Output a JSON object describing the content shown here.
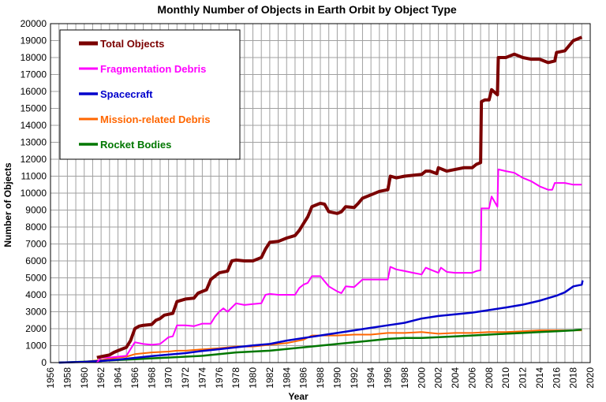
{
  "chart_data": {
    "type": "line",
    "title": "Monthly Number of Objects in Earth Orbit by Object Type",
    "xlabel": "Year",
    "ylabel": "Number of Objects",
    "xlim": [
      1956,
      2020
    ],
    "ylim": [
      0,
      20000
    ],
    "x_ticks": [
      "1956",
      "1958",
      "1960",
      "1962",
      "1964",
      "1966",
      "1968",
      "1970",
      "1972",
      "1974",
      "1976",
      "1978",
      "1980",
      "1982",
      "1984",
      "1986",
      "1988",
      "1990",
      "1992",
      "1994",
      "1996",
      "1998",
      "2000",
      "2002",
      "2004",
      "2006",
      "2008",
      "2010",
      "2012",
      "2014",
      "2016",
      "2018",
      "2020"
    ],
    "y_ticks": [
      "0",
      "1000",
      "2000",
      "3000",
      "4000",
      "5000",
      "6000",
      "7000",
      "8000",
      "9000",
      "10000",
      "11000",
      "12000",
      "13000",
      "14000",
      "15000",
      "16000",
      "17000",
      "18000",
      "19000",
      "20000"
    ],
    "grid": true,
    "legend_position": "top-left",
    "series": [
      {
        "name": "Total Objects",
        "color": "#7b0000",
        "points": [
          [
            1961.5,
            300
          ],
          [
            1962,
            350
          ],
          [
            1963,
            450
          ],
          [
            1963.5,
            600
          ],
          [
            1964,
            700
          ],
          [
            1965,
            900
          ],
          [
            1965.5,
            1300
          ],
          [
            1966,
            2000
          ],
          [
            1966.5,
            2150
          ],
          [
            1967,
            2200
          ],
          [
            1968,
            2250
          ],
          [
            1968.5,
            2500
          ],
          [
            1969,
            2600
          ],
          [
            1969.5,
            2800
          ],
          [
            1970.5,
            2900
          ],
          [
            1971,
            3600
          ],
          [
            1972,
            3750
          ],
          [
            1973,
            3800
          ],
          [
            1973.5,
            4100
          ],
          [
            1974.5,
            4300
          ],
          [
            1975,
            4900
          ],
          [
            1975.5,
            5100
          ],
          [
            1976,
            5300
          ],
          [
            1977,
            5400
          ],
          [
            1977.5,
            6000
          ],
          [
            1978,
            6050
          ],
          [
            1979,
            6000
          ],
          [
            1980,
            6000
          ],
          [
            1981,
            6200
          ],
          [
            1981.5,
            6700
          ],
          [
            1982,
            7100
          ],
          [
            1983,
            7150
          ],
          [
            1984,
            7350
          ],
          [
            1985,
            7500
          ],
          [
            1985.5,
            7800
          ],
          [
            1986,
            8200
          ],
          [
            1986.5,
            8600
          ],
          [
            1987,
            9200
          ],
          [
            1987.5,
            9300
          ],
          [
            1988,
            9400
          ],
          [
            1988.5,
            9350
          ],
          [
            1989,
            8900
          ],
          [
            1990,
            8800
          ],
          [
            1990.5,
            8900
          ],
          [
            1991,
            9200
          ],
          [
            1992,
            9150
          ],
          [
            1992.5,
            9400
          ],
          [
            1993,
            9700
          ],
          [
            1994,
            9900
          ],
          [
            1995,
            10100
          ],
          [
            1996,
            10200
          ],
          [
            1996.3,
            11000
          ],
          [
            1997,
            10900
          ],
          [
            1998,
            11000
          ],
          [
            1999,
            11050
          ],
          [
            2000,
            11100
          ],
          [
            2000.5,
            11300
          ],
          [
            2001,
            11300
          ],
          [
            2001.8,
            11150
          ],
          [
            2002,
            11500
          ],
          [
            2003,
            11300
          ],
          [
            2004,
            11400
          ],
          [
            2005,
            11500
          ],
          [
            2006,
            11500
          ],
          [
            2006.5,
            11700
          ],
          [
            2007,
            11800
          ],
          [
            2007.1,
            15400
          ],
          [
            2007.5,
            15500
          ],
          [
            2008,
            15500
          ],
          [
            2008.3,
            16100
          ],
          [
            2009,
            15800
          ],
          [
            2009.1,
            18000
          ],
          [
            2010,
            18000
          ],
          [
            2011,
            18200
          ],
          [
            2012,
            18000
          ],
          [
            2013,
            17900
          ],
          [
            2014,
            17900
          ],
          [
            2015,
            17700
          ],
          [
            2015.8,
            17800
          ],
          [
            2016,
            18300
          ],
          [
            2017,
            18400
          ],
          [
            2017.5,
            18700
          ],
          [
            2018,
            19000
          ],
          [
            2018.5,
            19100
          ],
          [
            2019,
            19200
          ]
        ]
      },
      {
        "name": "Fragmentation Debris",
        "color": "#ff00ff",
        "points": [
          [
            1961.5,
            0
          ],
          [
            1962,
            300
          ],
          [
            1963,
            300
          ],
          [
            1964,
            350
          ],
          [
            1965,
            400
          ],
          [
            1965.5,
            800
          ],
          [
            1966,
            1200
          ],
          [
            1967,
            1100
          ],
          [
            1968,
            1050
          ],
          [
            1969,
            1100
          ],
          [
            1970,
            1500
          ],
          [
            1970.5,
            1550
          ],
          [
            1971,
            2200
          ],
          [
            1972,
            2200
          ],
          [
            1973,
            2150
          ],
          [
            1974,
            2300
          ],
          [
            1975,
            2300
          ],
          [
            1975.5,
            2700
          ],
          [
            1976,
            3000
          ],
          [
            1976.5,
            3200
          ],
          [
            1977,
            3000
          ],
          [
            1978,
            3500
          ],
          [
            1979,
            3400
          ],
          [
            1980,
            3450
          ],
          [
            1981,
            3500
          ],
          [
            1981.5,
            4000
          ],
          [
            1982,
            4050
          ],
          [
            1983,
            4000
          ],
          [
            1984,
            4000
          ],
          [
            1985,
            4000
          ],
          [
            1985.5,
            4400
          ],
          [
            1986,
            4600
          ],
          [
            1986.5,
            4700
          ],
          [
            1987,
            5100
          ],
          [
            1988,
            5100
          ],
          [
            1988.5,
            4800
          ],
          [
            1989,
            4500
          ],
          [
            1990,
            4200
          ],
          [
            1990.5,
            4100
          ],
          [
            1991,
            4500
          ],
          [
            1992,
            4450
          ],
          [
            1993,
            4900
          ],
          [
            1994,
            4900
          ],
          [
            1995,
            4900
          ],
          [
            1996,
            4900
          ],
          [
            1996.3,
            5650
          ],
          [
            1997,
            5500
          ],
          [
            1998,
            5400
          ],
          [
            1999,
            5300
          ],
          [
            2000,
            5200
          ],
          [
            2000.5,
            5600
          ],
          [
            2001,
            5500
          ],
          [
            2002,
            5300
          ],
          [
            2002.3,
            5600
          ],
          [
            2003,
            5350
          ],
          [
            2004,
            5300
          ],
          [
            2005,
            5300
          ],
          [
            2006,
            5300
          ],
          [
            2006.5,
            5400
          ],
          [
            2007,
            5450
          ],
          [
            2007.1,
            9100
          ],
          [
            2008,
            9100
          ],
          [
            2008.3,
            9800
          ],
          [
            2009,
            9200
          ],
          [
            2009.1,
            11400
          ],
          [
            2010,
            11300
          ],
          [
            2011,
            11200
          ],
          [
            2012,
            10900
          ],
          [
            2013,
            10700
          ],
          [
            2014,
            10400
          ],
          [
            2015,
            10200
          ],
          [
            2015.5,
            10200
          ],
          [
            2015.8,
            10600
          ],
          [
            2017,
            10600
          ],
          [
            2018,
            10500
          ],
          [
            2019,
            10500
          ]
        ]
      },
      {
        "name": "Spacecraft",
        "color": "#0000cc",
        "points": [
          [
            1957,
            0
          ],
          [
            1960,
            40
          ],
          [
            1962,
            100
          ],
          [
            1964,
            170
          ],
          [
            1966,
            280
          ],
          [
            1968,
            380
          ],
          [
            1970,
            470
          ],
          [
            1972,
            560
          ],
          [
            1974,
            690
          ],
          [
            1976,
            790
          ],
          [
            1978,
            900
          ],
          [
            1980,
            1010
          ],
          [
            1982,
            1100
          ],
          [
            1984,
            1300
          ],
          [
            1986,
            1450
          ],
          [
            1988,
            1600
          ],
          [
            1990,
            1750
          ],
          [
            1992,
            1900
          ],
          [
            1994,
            2050
          ],
          [
            1996,
            2200
          ],
          [
            1998,
            2350
          ],
          [
            2000,
            2600
          ],
          [
            2002,
            2750
          ],
          [
            2004,
            2850
          ],
          [
            2006,
            2950
          ],
          [
            2008,
            3100
          ],
          [
            2010,
            3250
          ],
          [
            2012,
            3420
          ],
          [
            2014,
            3650
          ],
          [
            2016,
            3950
          ],
          [
            2017,
            4150
          ],
          [
            2018,
            4500
          ],
          [
            2019,
            4600
          ],
          [
            2019.1,
            4850
          ]
        ]
      },
      {
        "name": "Mission-related Debris",
        "color": "#ff6600",
        "points": [
          [
            1957,
            0
          ],
          [
            1960,
            50
          ],
          [
            1962,
            150
          ],
          [
            1964,
            300
          ],
          [
            1965,
            350
          ],
          [
            1966,
            500
          ],
          [
            1968,
            600
          ],
          [
            1970,
            650
          ],
          [
            1971,
            700
          ],
          [
            1972,
            700
          ],
          [
            1974,
            780
          ],
          [
            1976,
            850
          ],
          [
            1978,
            950
          ],
          [
            1980,
            950
          ],
          [
            1982,
            1050
          ],
          [
            1984,
            1150
          ],
          [
            1986,
            1350
          ],
          [
            1987,
            1600
          ],
          [
            1988,
            1600
          ],
          [
            1990,
            1600
          ],
          [
            1992,
            1650
          ],
          [
            1994,
            1650
          ],
          [
            1996,
            1750
          ],
          [
            1998,
            1750
          ],
          [
            2000,
            1800
          ],
          [
            2002,
            1700
          ],
          [
            2004,
            1750
          ],
          [
            2006,
            1750
          ],
          [
            2008,
            1800
          ],
          [
            2010,
            1800
          ],
          [
            2012,
            1850
          ],
          [
            2014,
            1900
          ],
          [
            2016,
            1900
          ],
          [
            2018,
            1900
          ],
          [
            2019,
            1900
          ]
        ]
      },
      {
        "name": "Rocket Bodies",
        "color": "#007700",
        "points": [
          [
            1957,
            0
          ],
          [
            1960,
            50
          ],
          [
            1962,
            100
          ],
          [
            1964,
            150
          ],
          [
            1966,
            200
          ],
          [
            1968,
            250
          ],
          [
            1970,
            300
          ],
          [
            1972,
            350
          ],
          [
            1974,
            400
          ],
          [
            1976,
            500
          ],
          [
            1978,
            600
          ],
          [
            1980,
            650
          ],
          [
            1982,
            700
          ],
          [
            1984,
            800
          ],
          [
            1986,
            900
          ],
          [
            1988,
            1000
          ],
          [
            1990,
            1100
          ],
          [
            1992,
            1200
          ],
          [
            1994,
            1300
          ],
          [
            1996,
            1400
          ],
          [
            1998,
            1450
          ],
          [
            2000,
            1450
          ],
          [
            2002,
            1500
          ],
          [
            2004,
            1550
          ],
          [
            2006,
            1600
          ],
          [
            2008,
            1650
          ],
          [
            2010,
            1700
          ],
          [
            2012,
            1750
          ],
          [
            2014,
            1800
          ],
          [
            2016,
            1850
          ],
          [
            2018,
            1900
          ],
          [
            2019,
            1950
          ]
        ]
      }
    ]
  }
}
